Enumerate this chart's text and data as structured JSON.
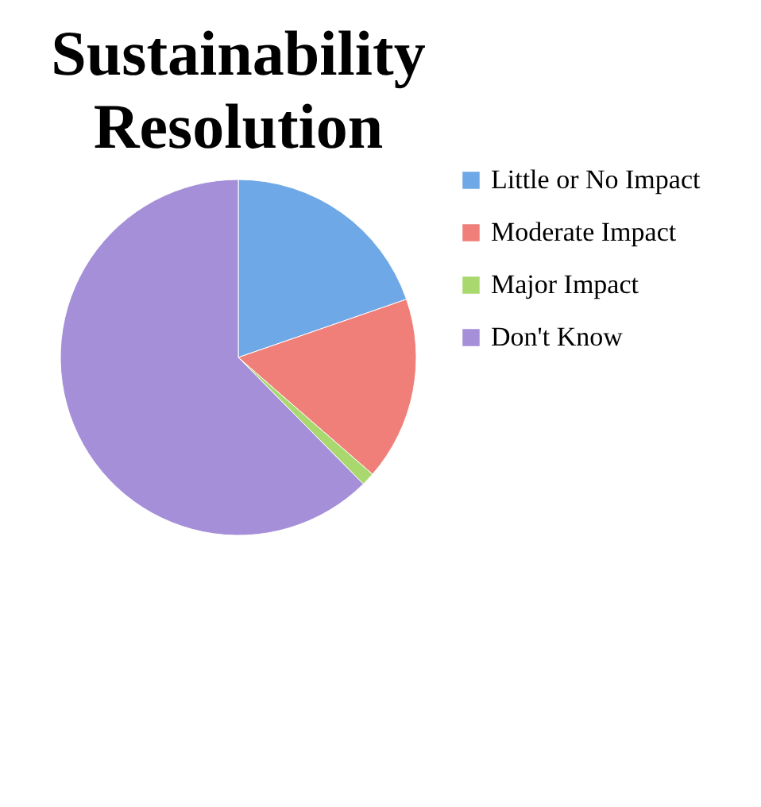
{
  "chart_data": {
    "type": "pie",
    "title": "Sustainability Resolution",
    "categories": [
      "Little or No Impact",
      "Moderate Impact",
      "Major Impact",
      "Don't Know"
    ],
    "values": [
      19.7,
      16.7,
      1.2,
      62.4
    ],
    "colors": [
      "#6fa8e6",
      "#ef7f78",
      "#a9d86e",
      "#a48fd8"
    ],
    "legend": "right"
  }
}
